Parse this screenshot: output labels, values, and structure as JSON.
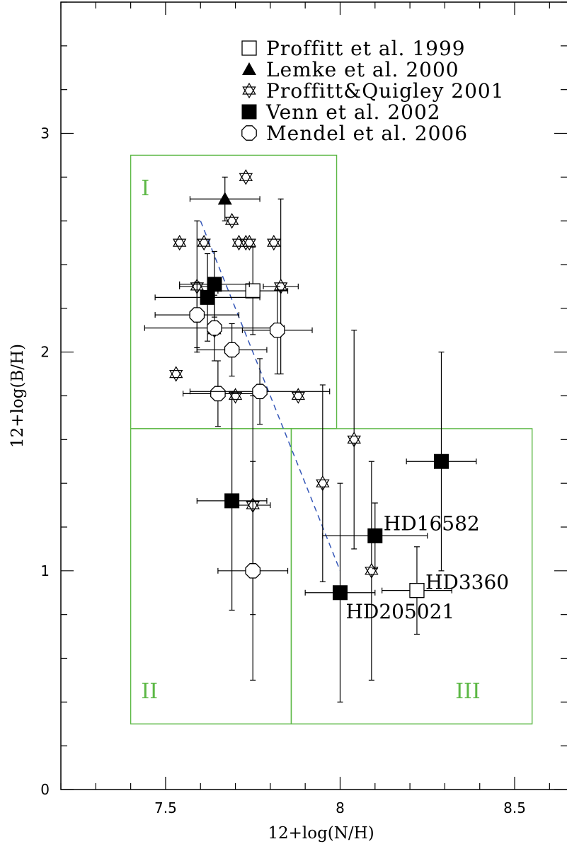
{
  "chart_data": {
    "type": "scatter",
    "xlabel": "12+log(N/H)",
    "ylabel": "12+log(B/H)",
    "xlim": [
      7.2,
      8.65
    ],
    "ylim": [
      0,
      3.6
    ],
    "x_ticks": [
      "7.5",
      "8",
      "8.5"
    ],
    "y_ticks": [
      "0",
      "1",
      "2",
      "3"
    ],
    "legend": [
      {
        "label": "Proffitt et al. 1999",
        "marker": "open-square"
      },
      {
        "label": "Lemke et al. 2000",
        "marker": "filled-triangle"
      },
      {
        "label": "Proffitt&Quigley 2001",
        "marker": "open-star"
      },
      {
        "label": "Venn et al. 2002",
        "marker": "filled-square"
      },
      {
        "label": "Mendel et al. 2006",
        "marker": "open-hexagon"
      }
    ],
    "series": [
      {
        "name": "Proffitt et al. 1999",
        "marker": "open-square",
        "points": [
          {
            "x": 7.75,
            "y": 2.28,
            "xerr": 0.1,
            "yerr": 0.2
          },
          {
            "x": 8.22,
            "y": 0.91,
            "xerr": 0.1,
            "yerr": 0.2
          }
        ]
      },
      {
        "name": "Lemke et al. 2000",
        "marker": "filled-triangle",
        "points": [
          {
            "x": 7.67,
            "y": 2.7,
            "xerr": 0.1,
            "yerr": 0.1
          }
        ]
      },
      {
        "name": "Proffitt&Quigley 2001",
        "marker": "open-star",
        "points": [
          {
            "x": 7.73,
            "y": 2.8
          },
          {
            "x": 7.69,
            "y": 2.6
          },
          {
            "x": 7.54,
            "y": 2.5
          },
          {
            "x": 7.61,
            "y": 2.5
          },
          {
            "x": 7.71,
            "y": 2.5
          },
          {
            "x": 7.73,
            "y": 2.5
          },
          {
            "x": 7.74,
            "y": 2.5
          },
          {
            "x": 7.81,
            "y": 2.5
          },
          {
            "x": 7.59,
            "y": 2.3,
            "xerr": 0.05,
            "yerr": 0.3
          },
          {
            "x": 7.83,
            "y": 2.3,
            "xerr": 0.05,
            "yerr": 0.4
          },
          {
            "x": 7.64,
            "y": 2.1
          },
          {
            "x": 7.53,
            "y": 1.9
          },
          {
            "x": 7.7,
            "y": 1.8
          },
          {
            "x": 7.88,
            "y": 1.8
          },
          {
            "x": 7.95,
            "y": 1.4,
            "yerr": 0.45
          },
          {
            "x": 8.04,
            "y": 1.6,
            "yerr": 0.5
          },
          {
            "x": 7.75,
            "y": 1.3,
            "xerr": 0.05,
            "yerr": 0.5
          },
          {
            "x": 8.09,
            "y": 1.0,
            "yerr": 0.5
          }
        ]
      },
      {
        "name": "Venn et al. 2002",
        "marker": "filled-square",
        "points": [
          {
            "x": 7.62,
            "y": 2.25,
            "xerr": 0.15,
            "yerr": 0.2
          },
          {
            "x": 7.64,
            "y": 2.31,
            "xerr": 0.1,
            "yerr": 0.15
          },
          {
            "x": 7.69,
            "y": 1.32,
            "xerr": 0.1,
            "yerr": 0.5
          },
          {
            "x": 8.1,
            "y": 1.16,
            "xerr": 0.15,
            "yerr": 0.15,
            "label": "HD16582"
          },
          {
            "x": 8.0,
            "y": 0.9,
            "xerr": 0.1,
            "yerr": 0.5,
            "label": "HD205021"
          },
          {
            "x": 8.29,
            "y": 1.5,
            "xerr": 0.1,
            "yerr": 0.5
          }
        ]
      },
      {
        "name": "Mendel et al. 2006",
        "marker": "open-hexagon",
        "points": [
          {
            "x": 7.59,
            "y": 2.17,
            "xerr": 0.12,
            "yerr": 0.15
          },
          {
            "x": 7.64,
            "y": 2.11,
            "xerr": 0.2,
            "yerr": 0.15
          },
          {
            "x": 7.82,
            "y": 2.1,
            "xerr": 0.1,
            "yerr": 0.2
          },
          {
            "x": 7.69,
            "y": 2.01,
            "xerr": 0.1,
            "yerr": 0.12
          },
          {
            "x": 7.65,
            "y": 1.81,
            "xerr": 0.1,
            "yerr": 0.15
          },
          {
            "x": 7.77,
            "y": 1.82,
            "xerr": 0.2,
            "yerr": 0.15
          },
          {
            "x": 7.75,
            "y": 1.0,
            "xerr": 0.1,
            "yerr": 0.5
          }
        ]
      }
    ],
    "regions": [
      {
        "label": "I",
        "x": [
          7.4,
          7.99
        ],
        "y": [
          1.65,
          2.9
        ]
      },
      {
        "label": "II",
        "x": [
          7.4,
          7.86
        ],
        "y": [
          0.3,
          1.65
        ]
      },
      {
        "label": "III",
        "x": [
          7.86,
          8.55
        ],
        "y": [
          0.3,
          1.65
        ]
      }
    ],
    "trend_line": {
      "style": "dashed",
      "from": [
        7.6,
        2.6
      ],
      "to": [
        8.0,
        1.0
      ]
    },
    "colors": {
      "regions": "#5cb845",
      "trend": "#3557b8",
      "points": "#000000"
    }
  }
}
